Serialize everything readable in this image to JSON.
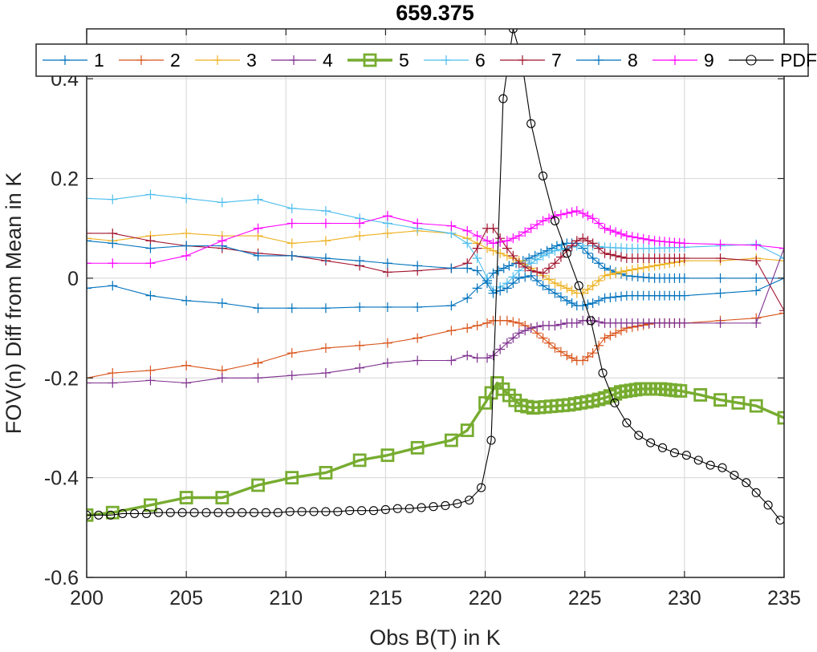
{
  "chart_data": {
    "type": "line",
    "title": "659.375",
    "xlabel": "Obs B(T) in K",
    "ylabel": "FOV(n) Diff from Mean in K",
    "xlim": [
      200,
      235
    ],
    "ylim": [
      -0.6,
      0.5
    ],
    "xticks": [
      200,
      205,
      210,
      215,
      220,
      225,
      230,
      235
    ],
    "yticks": [
      -0.6,
      -0.4,
      -0.2,
      0,
      0.2,
      0.4
    ],
    "ytick_labels": [
      "-0.6",
      "-0.4",
      "-0.2",
      "0",
      "0.2",
      "0.4"
    ],
    "grid": true,
    "legend_position": "top",
    "series": [
      {
        "name": "1",
        "color": "#0072BD",
        "marker": "+",
        "x": [
          200,
          201.3,
          203.2,
          205,
          206.8,
          208.6,
          210.3,
          212,
          213.7,
          215.1,
          216.6,
          218.3,
          219.1,
          219.6,
          220.1,
          220.4,
          221.2,
          221.9,
          222.5,
          223.1,
          223.6,
          224.1,
          224.6,
          224.9,
          225.4,
          226,
          227.1,
          228.5,
          230,
          231.8,
          233.6,
          235
        ],
        "y": [
          -0.02,
          -0.015,
          -0.035,
          -0.045,
          -0.05,
          -0.06,
          -0.06,
          -0.06,
          -0.058,
          -0.058,
          -0.058,
          -0.055,
          -0.04,
          -0.02,
          -0.005,
          0.01,
          0.025,
          0.035,
          0.045,
          0.055,
          0.065,
          0.07,
          0.07,
          0.06,
          0.04,
          0.02,
          0.005,
          0,
          0,
          0,
          0,
          0
        ]
      },
      {
        "name": "2",
        "color": "#D95319",
        "marker": "+",
        "x": [
          200,
          201.3,
          203.2,
          205,
          206.8,
          208.6,
          210.3,
          212,
          213.7,
          215.1,
          216.6,
          218.3,
          219.1,
          219.6,
          220.1,
          220.4,
          221.1,
          221.7,
          222.3,
          222.9,
          223.5,
          224.1,
          224.6,
          224.9,
          225.4,
          226,
          227.1,
          228.5,
          230,
          231.8,
          233.6,
          235
        ],
        "y": [
          -0.2,
          -0.19,
          -0.185,
          -0.175,
          -0.185,
          -0.17,
          -0.15,
          -0.14,
          -0.135,
          -0.13,
          -0.12,
          -0.105,
          -0.1,
          -0.095,
          -0.09,
          -0.085,
          -0.085,
          -0.09,
          -0.1,
          -0.12,
          -0.14,
          -0.155,
          -0.165,
          -0.165,
          -0.15,
          -0.12,
          -0.1,
          -0.09,
          -0.09,
          -0.085,
          -0.08,
          -0.07
        ]
      },
      {
        "name": "3",
        "color": "#EDB120",
        "marker": "+",
        "x": [
          200,
          201.3,
          203.2,
          205,
          206.8,
          208.6,
          210.3,
          212,
          213.7,
          215.1,
          216.6,
          218.3,
          219.1,
          219.6,
          220.1,
          220.4,
          221.1,
          221.7,
          222.3,
          222.9,
          223.5,
          224.1,
          224.6,
          224.9,
          225.4,
          226,
          227.1,
          228.5,
          230,
          231.8,
          233.6,
          235
        ],
        "y": [
          0.08,
          0.075,
          0.085,
          0.09,
          0.085,
          0.085,
          0.07,
          0.075,
          0.085,
          0.09,
          0.095,
          0.09,
          0.08,
          0.07,
          0.06,
          0.055,
          0.045,
          0.035,
          0.02,
          0.005,
          -0.01,
          -0.02,
          -0.03,
          -0.03,
          -0.015,
          0.005,
          0.015,
          0.025,
          0.035,
          0.035,
          0.04,
          0.035
        ]
      },
      {
        "name": "4",
        "color": "#7E2F8E",
        "marker": "+",
        "x": [
          200,
          201.3,
          203.2,
          205,
          206.8,
          208.6,
          210.3,
          212,
          213.7,
          215.1,
          216.6,
          218.3,
          219.1,
          219.6,
          220.1,
          220.4,
          221.1,
          221.7,
          222.3,
          222.9,
          223.5,
          224.1,
          224.6,
          224.9,
          225.4,
          226,
          227.1,
          228.5,
          230,
          231.8,
          233.6,
          235
        ],
        "y": [
          -0.21,
          -0.21,
          -0.205,
          -0.21,
          -0.2,
          -0.2,
          -0.195,
          -0.19,
          -0.18,
          -0.17,
          -0.165,
          -0.165,
          -0.155,
          -0.16,
          -0.16,
          -0.155,
          -0.13,
          -0.11,
          -0.1,
          -0.095,
          -0.095,
          -0.09,
          -0.09,
          -0.085,
          -0.085,
          -0.09,
          -0.09,
          -0.09,
          -0.09,
          -0.09,
          -0.09,
          0.06
        ]
      },
      {
        "name": "5",
        "color": "#77AC30",
        "marker": "square",
        "x": [
          200,
          201.3,
          203.2,
          205,
          206.8,
          208.6,
          210.3,
          212,
          213.7,
          215.1,
          216.6,
          218.3,
          219.1,
          220,
          220.6,
          221.2,
          221.8,
          222.4,
          223,
          223.6,
          224.2,
          224.8,
          225.4,
          226,
          226.8,
          227.8,
          228.8,
          229.8,
          230.8,
          231.8,
          232.7,
          233.6,
          235
        ],
        "y": [
          -0.475,
          -0.47,
          -0.455,
          -0.44,
          -0.44,
          -0.415,
          -0.4,
          -0.39,
          -0.365,
          -0.355,
          -0.34,
          -0.325,
          -0.305,
          -0.25,
          -0.21,
          -0.235,
          -0.255,
          -0.26,
          -0.258,
          -0.256,
          -0.254,
          -0.25,
          -0.246,
          -0.24,
          -0.228,
          -0.222,
          -0.222,
          -0.226,
          -0.234,
          -0.244,
          -0.25,
          -0.256,
          -0.28
        ]
      },
      {
        "name": "6",
        "color": "#4DBEEE",
        "marker": "+",
        "x": [
          200,
          201.3,
          203.2,
          205,
          206.8,
          208.6,
          210.3,
          212,
          213.7,
          215.1,
          216.6,
          218.3,
          219.1,
          219.6,
          220.1,
          220.4,
          221.1,
          221.7,
          222.3,
          222.9,
          223.5,
          224.1,
          224.6,
          224.9,
          225.4,
          226,
          227.1,
          228.5,
          230,
          231.8,
          233.6,
          235
        ],
        "y": [
          0.16,
          0.158,
          0.168,
          0.16,
          0.152,
          0.158,
          0.14,
          0.135,
          0.12,
          0.11,
          0.1,
          0.09,
          0.07,
          0.04,
          0.0,
          -0.025,
          -0.01,
          0.015,
          0.03,
          0.045,
          0.055,
          0.06,
          0.065,
          0.065,
          0.065,
          0.062,
          0.06,
          0.06,
          0.062,
          0.065,
          0.068,
          0.04
        ]
      },
      {
        "name": "7",
        "color": "#A2142F",
        "marker": "+",
        "x": [
          200,
          201.3,
          203.2,
          205,
          206.8,
          208.6,
          210.3,
          212,
          213.7,
          215.1,
          216.6,
          218.3,
          219.1,
          219.6,
          220.1,
          220.4,
          221.1,
          221.7,
          222.3,
          222.9,
          223.5,
          224.1,
          224.6,
          224.9,
          225.4,
          226,
          227.1,
          228.5,
          230,
          231.8,
          233.6,
          235
        ],
        "y": [
          0.09,
          0.09,
          0.075,
          0.065,
          0.06,
          0.05,
          0.045,
          0.035,
          0.025,
          0.012,
          0.015,
          0.02,
          0.03,
          0.06,
          0.1,
          0.1,
          0.06,
          0.03,
          0.015,
          0.01,
          0.03,
          0.055,
          0.075,
          0.08,
          0.07,
          0.05,
          0.04,
          0.04,
          0.04,
          0.04,
          0.035,
          -0.065
        ]
      },
      {
        "name": "8",
        "color": "#0072BD",
        "marker": "+",
        "x": [
          200,
          201.3,
          203.2,
          205,
          206.8,
          208.6,
          210.3,
          212,
          213.7,
          215.1,
          216.6,
          218.3,
          219.1,
          219.6,
          220.1,
          220.4,
          221.1,
          221.7,
          222.3,
          222.9,
          223.5,
          224.1,
          224.6,
          224.9,
          225.4,
          226,
          227.1,
          228.5,
          230,
          231.8,
          233.6,
          235
        ],
        "y": [
          0.075,
          0.07,
          0.06,
          0.065,
          0.065,
          0.045,
          0.045,
          0.04,
          0.035,
          0.03,
          0.025,
          0.02,
          0.02,
          0.015,
          -0.01,
          -0.03,
          -0.02,
          0.0,
          0.005,
          -0.015,
          -0.03,
          -0.045,
          -0.055,
          -0.055,
          -0.05,
          -0.04,
          -0.035,
          -0.035,
          -0.035,
          -0.03,
          -0.025,
          0.0
        ]
      },
      {
        "name": "9",
        "color": "#FF00FF",
        "marker": "+",
        "x": [
          200,
          201.3,
          203.2,
          205,
          206.8,
          208.6,
          210.3,
          212,
          213.7,
          215.1,
          216.6,
          218.3,
          219.1,
          219.6,
          220.1,
          220.4,
          221.1,
          221.7,
          222.3,
          222.9,
          223.5,
          224.1,
          224.6,
          224.9,
          225.4,
          226,
          227.1,
          228.5,
          230,
          231.8,
          233.6,
          235
        ],
        "y": [
          0.03,
          0.03,
          0.03,
          0.045,
          0.075,
          0.1,
          0.11,
          0.11,
          0.11,
          0.125,
          0.11,
          0.105,
          0.095,
          0.085,
          0.075,
          0.07,
          0.075,
          0.085,
          0.1,
          0.115,
          0.125,
          0.13,
          0.135,
          0.13,
          0.12,
          0.1,
          0.085,
          0.075,
          0.07,
          0.068,
          0.066,
          0.06
        ]
      },
      {
        "name": "PDF",
        "color": "#000000",
        "marker": "circle",
        "x": [
          200,
          200.6,
          201.2,
          201.8,
          202.4,
          203,
          203.6,
          204.2,
          204.8,
          205.4,
          206,
          206.6,
          207.2,
          207.8,
          208.4,
          209,
          209.6,
          210.2,
          210.8,
          211.4,
          212,
          212.6,
          213.2,
          213.8,
          214.4,
          215,
          215.6,
          216.2,
          216.8,
          217.4,
          218,
          218.6,
          219.2,
          219.8,
          220.3,
          220.9,
          221.4,
          221.8,
          222.3,
          222.9,
          223.5,
          224.1,
          224.7,
          225.3,
          225.9,
          226.5,
          227.1,
          227.7,
          228.3,
          228.9,
          229.5,
          230.1,
          230.7,
          231.3,
          231.9,
          232.5,
          233.1,
          233.6,
          234.2,
          234.8
        ],
        "y": [
          -0.475,
          -0.475,
          -0.475,
          -0.472,
          -0.472,
          -0.472,
          -0.47,
          -0.47,
          -0.47,
          -0.47,
          -0.47,
          -0.47,
          -0.47,
          -0.47,
          -0.47,
          -0.47,
          -0.47,
          -0.468,
          -0.468,
          -0.468,
          -0.468,
          -0.468,
          -0.466,
          -0.466,
          -0.466,
          -0.464,
          -0.462,
          -0.462,
          -0.46,
          -0.458,
          -0.456,
          -0.452,
          -0.445,
          -0.42,
          -0.325,
          0.36,
          0.5,
          0.445,
          0.31,
          0.205,
          0.115,
          0.05,
          -0.015,
          -0.085,
          -0.19,
          -0.25,
          -0.29,
          -0.315,
          -0.33,
          -0.34,
          -0.35,
          -0.355,
          -0.365,
          -0.375,
          -0.38,
          -0.395,
          -0.41,
          -0.43,
          -0.455,
          -0.485
        ]
      }
    ]
  }
}
